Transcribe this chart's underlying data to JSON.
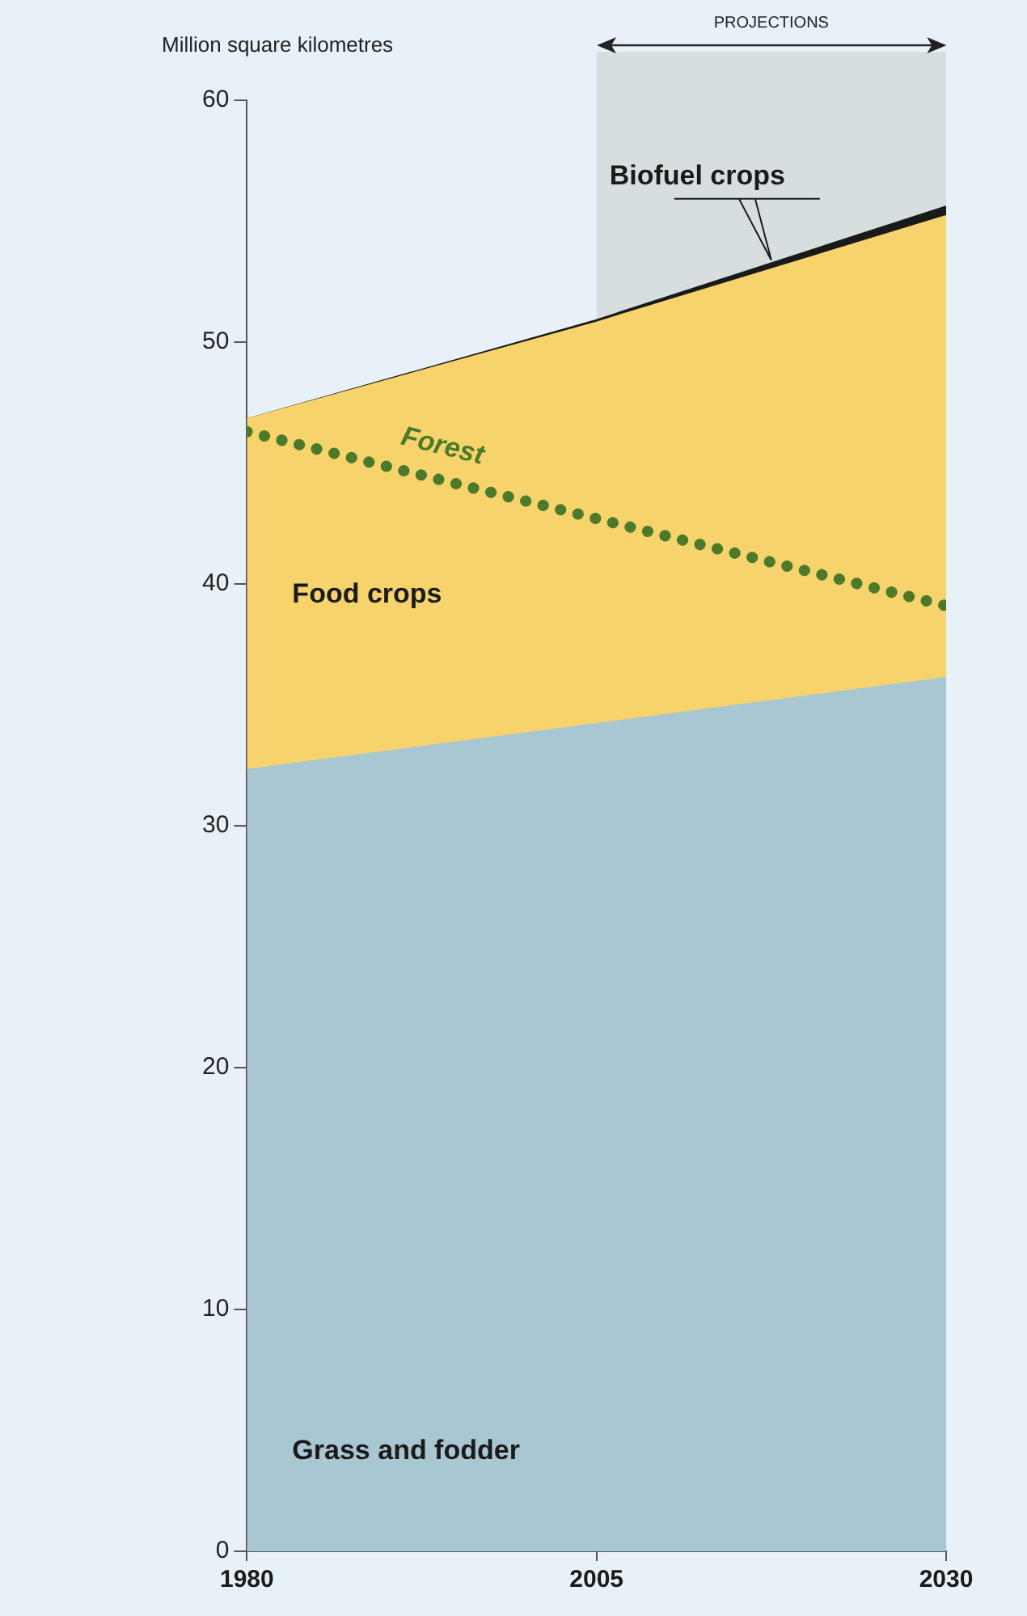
{
  "chart_data": {
    "type": "area",
    "ylabel": "Million square kilometres",
    "x": [
      1980,
      2005,
      2030
    ],
    "xlim": [
      1980,
      2030
    ],
    "xticks": [
      1980,
      2005,
      2030
    ],
    "ylim": [
      0,
      60
    ],
    "yticks": [
      0,
      10,
      20,
      30,
      40,
      50,
      60
    ],
    "stacked": true,
    "grid": false,
    "legend": false,
    "series": [
      {
        "name": "Grass and fodder",
        "color": "#a9c6d3",
        "values": [
          32.3,
          34.2,
          36.1
        ]
      },
      {
        "name": "Food crops",
        "color": "#f7d36b",
        "values": [
          14.5,
          16.6,
          19.1
        ]
      },
      {
        "name": "Biofuel crops",
        "color": "#1a1a1a",
        "values": [
          0,
          0.1,
          0.4
        ]
      },
      {
        "name": "Forest",
        "type": "line",
        "color": "#4a7a2a",
        "line_style": "dotted",
        "values": [
          46.3,
          42.7,
          39.1
        ]
      }
    ],
    "bands": [
      {
        "axis": "x",
        "from": 2005,
        "to": 2030,
        "label": "PROJECTIONS",
        "color": "#8c8c7a"
      }
    ]
  }
}
